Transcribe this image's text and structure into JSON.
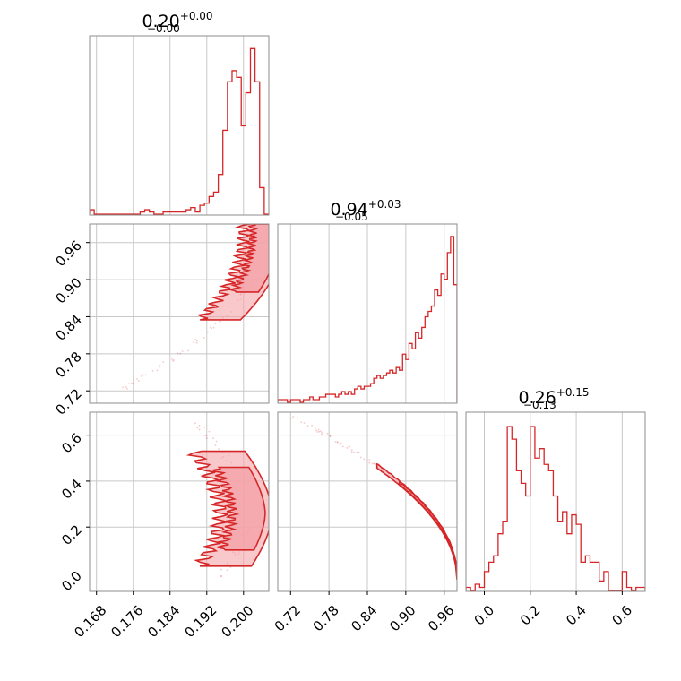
{
  "chart_data": {
    "type": "corner",
    "color": "#d62728",
    "fill_color": "#f4a3a8",
    "grid": true,
    "panels": [
      {
        "kind": "histogram",
        "param": 0,
        "title": {
          "value": "0.20",
          "plus": "+0.00",
          "minus": "−0.00"
        },
        "xlim": [
          0.1665,
          0.2055
        ],
        "bin_edges": [
          0.1665,
          0.1675,
          0.1685,
          0.1695,
          0.1705,
          0.1715,
          0.1725,
          0.1735,
          0.1745,
          0.1755,
          0.1765,
          0.1775,
          0.1785,
          0.1795,
          0.1805,
          0.1815,
          0.1825,
          0.1835,
          0.1845,
          0.1855,
          0.1865,
          0.1875,
          0.1885,
          0.1895,
          0.1905,
          0.1915,
          0.1925,
          0.1935,
          0.1945,
          0.1955,
          0.1965,
          0.1975,
          0.1985,
          0.1995,
          0.2005,
          0.2015,
          0.2025,
          0.2035,
          0.2045,
          0.2055
        ],
        "counts": [
          2,
          0,
          0,
          0,
          0,
          0,
          0,
          0,
          0,
          0,
          0,
          1,
          2,
          1,
          0,
          0,
          1,
          1,
          1,
          1,
          1,
          2,
          3,
          1,
          4,
          5,
          8,
          10,
          18,
          38,
          60,
          65,
          62,
          40,
          55,
          75,
          60,
          12,
          0
        ],
        "ymax": 80
      },
      {
        "kind": "histogram",
        "param": 1,
        "title": {
          "value": "0.94",
          "plus": "+0.03",
          "minus": "−0.05"
        },
        "xlim": [
          0.7,
          0.98
        ],
        "bin_edges": [
          0.7,
          0.705,
          0.71,
          0.715,
          0.72,
          0.725,
          0.73,
          0.735,
          0.74,
          0.745,
          0.75,
          0.755,
          0.76,
          0.765,
          0.77,
          0.775,
          0.78,
          0.785,
          0.79,
          0.795,
          0.8,
          0.805,
          0.81,
          0.815,
          0.82,
          0.825,
          0.83,
          0.835,
          0.84,
          0.845,
          0.85,
          0.855,
          0.86,
          0.865,
          0.87,
          0.875,
          0.88,
          0.885,
          0.89,
          0.895,
          0.9,
          0.905,
          0.91,
          0.915,
          0.92,
          0.925,
          0.93,
          0.935,
          0.94,
          0.945,
          0.95,
          0.955,
          0.96,
          0.965,
          0.97,
          0.975,
          0.98
        ],
        "counts": [
          1,
          1,
          1,
          0,
          1,
          1,
          1,
          0,
          1,
          1,
          2,
          1,
          1,
          2,
          2,
          3,
          3,
          3,
          2,
          3,
          4,
          3,
          4,
          3,
          5,
          6,
          5,
          6,
          6,
          7,
          9,
          10,
          9,
          10,
          11,
          12,
          11,
          13,
          12,
          18,
          16,
          22,
          20,
          26,
          24,
          28,
          32,
          34,
          36,
          42,
          40,
          48,
          46,
          56,
          62,
          44
        ],
        "ymax": 66
      },
      {
        "kind": "histogram",
        "param": 2,
        "title": {
          "value": "0.26",
          "plus": "+0.15",
          "minus": "−0.13"
        },
        "xlim": [
          -0.08,
          0.7
        ],
        "bin_edges": [
          -0.08,
          -0.06,
          -0.04,
          -0.02,
          0.0,
          0.02,
          0.04,
          0.06,
          0.08,
          0.1,
          0.12,
          0.14,
          0.16,
          0.18,
          0.2,
          0.22,
          0.24,
          0.26,
          0.28,
          0.3,
          0.32,
          0.34,
          0.36,
          0.38,
          0.4,
          0.42,
          0.44,
          0.46,
          0.48,
          0.5,
          0.52,
          0.54,
          0.56,
          0.58,
          0.6,
          0.62,
          0.64,
          0.66,
          0.68,
          0.7
        ],
        "counts": [
          1,
          0,
          2,
          1,
          6,
          9,
          11,
          18,
          22,
          52,
          48,
          38,
          34,
          30,
          52,
          42,
          45,
          40,
          38,
          30,
          22,
          25,
          18,
          24,
          21,
          9,
          11,
          9,
          9,
          3,
          6,
          0,
          0,
          0,
          6,
          1,
          0,
          1,
          1
        ],
        "ymax": 56
      },
      {
        "kind": "contour",
        "params": [
          0,
          1
        ],
        "xlim": [
          0.1665,
          0.2055
        ],
        "ylim": [
          0.7,
          0.99
        ],
        "curve": {
          "type": "parabola",
          "x_peak": 0.2055,
          "y_peak": 0.975,
          "x_at_min_y": 0.1765,
          "min_y": 0.73
        },
        "levels": [
          {
            "y_range": [
              0.835,
              0.99
            ],
            "thickness": 0.0055,
            "alpha": 0.6
          },
          {
            "y_range": [
              0.88,
              0.99
            ],
            "thickness": 0.0035,
            "alpha": 0.8
          }
        ],
        "scatter_range": [
          0.72,
          0.97
        ]
      },
      {
        "kind": "contour",
        "params": [
          0,
          2
        ],
        "xlim": [
          0.1665,
          0.2055
        ],
        "ylim": [
          -0.08,
          0.7
        ],
        "curve": {
          "type": "arc",
          "x_peak": 0.2055,
          "y_center": 0.26,
          "half_height": 0.42
        },
        "levels": [
          {
            "y_range": [
              0.03,
              0.53
            ],
            "thickness": 0.007,
            "alpha": 0.6
          },
          {
            "y_range": [
              0.1,
              0.46
            ],
            "thickness": 0.0045,
            "alpha": 0.8
          }
        ],
        "scatter_range": [
          -0.02,
          0.68
        ]
      },
      {
        "kind": "contour",
        "params": [
          1,
          2
        ],
        "xlim": [
          0.7,
          0.98
        ],
        "ylim": [
          -0.08,
          0.7
        ],
        "curve": {
          "type": "sqrt",
          "x_end": 0.98,
          "y_at_start": 0.68,
          "x_start": 0.72
        },
        "levels": [
          {
            "x_range": [
              0.855,
              0.98
            ],
            "thickness": 0.018,
            "alpha": 0.6
          },
          {
            "x_range": [
              0.89,
              0.98
            ],
            "thickness": 0.012,
            "alpha": 0.8
          }
        ],
        "scatter_range": [
          0.72,
          0.9
        ]
      }
    ],
    "axes": {
      "x0": {
        "ticks": [
          0.168,
          0.176,
          0.184,
          0.192,
          0.2
        ],
        "labels": [
          "0.168",
          "0.176",
          "0.184",
          "0.192",
          "0.200"
        ]
      },
      "x1": {
        "ticks": [
          0.72,
          0.78,
          0.84,
          0.9,
          0.96
        ],
        "labels": [
          "0.72",
          "0.78",
          "0.84",
          "0.90",
          "0.96"
        ]
      },
      "x2": {
        "ticks": [
          0.0,
          0.2,
          0.4,
          0.6
        ],
        "labels": [
          "0.0",
          "0.2",
          "0.4",
          "0.6"
        ]
      },
      "y1": {
        "ticks": [
          0.72,
          0.78,
          0.84,
          0.9,
          0.96
        ],
        "labels": [
          "0.72",
          "0.78",
          "0.84",
          "0.90",
          "0.96"
        ]
      },
      "y2": {
        "ticks": [
          0.0,
          0.2,
          0.4,
          0.6
        ],
        "labels": [
          "0.0",
          "0.2",
          "0.4",
          "0.6"
        ]
      }
    }
  }
}
